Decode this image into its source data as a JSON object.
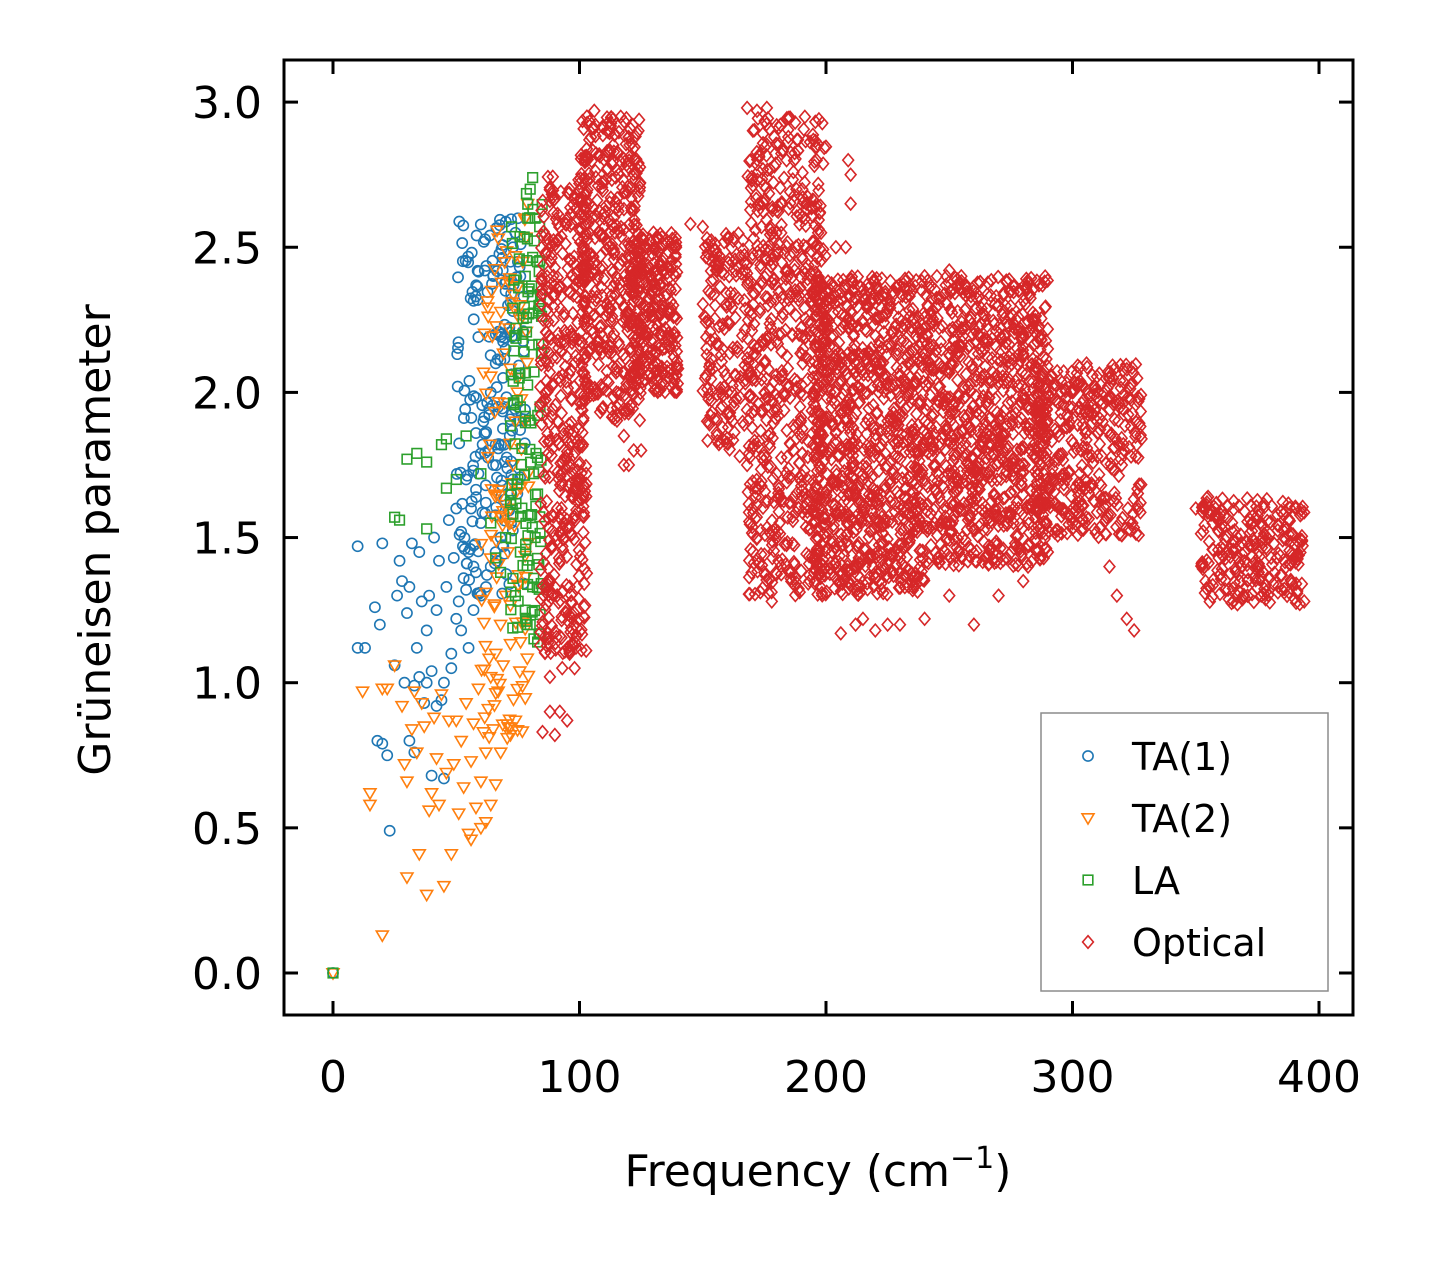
{
  "chart_data": {
    "type": "scatter",
    "xlabel": "Frequency (cm",
    "xlabel_sup": "−1",
    "xlabel_close": ")",
    "ylabel": "Grüneisen parameter",
    "xlim": [
      -20,
      413
    ],
    "ylim": [
      -0.15,
      3.15
    ],
    "xticks": [
      0,
      100,
      200,
      300,
      400
    ],
    "xtick_labels": [
      "0",
      "100",
      "200",
      "300",
      "400"
    ],
    "yticks": [
      0.0,
      0.5,
      1.0,
      1.5,
      2.0,
      2.5,
      3.0
    ],
    "ytick_labels": [
      "0.0",
      "0.5",
      "1.0",
      "1.5",
      "2.0",
      "2.5",
      "3.0"
    ],
    "grid": false,
    "legend_position": "lower-right",
    "series": [
      {
        "name": "TA(1)",
        "marker": "circle",
        "color": "#1f77b4",
        "points": [
          [
            0,
            0
          ],
          [
            10,
            1.47
          ],
          [
            10,
            1.12
          ],
          [
            13,
            1.12
          ],
          [
            17,
            1.26
          ],
          [
            19,
            1.2
          ],
          [
            20,
            1.48
          ],
          [
            23,
            0.49
          ],
          [
            25,
            1.06
          ],
          [
            18,
            0.8
          ],
          [
            20,
            0.79
          ],
          [
            22,
            0.75
          ],
          [
            26,
            1.3
          ],
          [
            27,
            1.42
          ],
          [
            28,
            1.35
          ],
          [
            29,
            1.0
          ],
          [
            30,
            1.24
          ],
          [
            31,
            0.8
          ],
          [
            31,
            1.33
          ],
          [
            32,
            1.48
          ],
          [
            33,
            0.76
          ],
          [
            34,
            1.12
          ],
          [
            35,
            1.45
          ],
          [
            36,
            1.28
          ],
          [
            37,
            0.93
          ],
          [
            38,
            1.18
          ],
          [
            39,
            1.3
          ],
          [
            40,
            1.04
          ],
          [
            40,
            0.68
          ],
          [
            41,
            1.5
          ],
          [
            42,
            1.25
          ],
          [
            43,
            1.42
          ],
          [
            44,
            0.94
          ],
          [
            45,
            0.67
          ],
          [
            46,
            1.33
          ],
          [
            47,
            1.56
          ],
          [
            48,
            1.1
          ],
          [
            49,
            1.43
          ],
          [
            50,
            1.6
          ],
          [
            51,
            1.28
          ],
          [
            52,
            1.52
          ],
          [
            53,
            1.36
          ],
          [
            54,
            1.7
          ],
          [
            55,
            1.45
          ],
          [
            56,
            1.6
          ],
          [
            57,
            1.4
          ],
          [
            58,
            1.86
          ],
          [
            59,
            1.72
          ],
          [
            60,
            1.55
          ],
          [
            61,
            1.9
          ],
          [
            62,
            1.68
          ],
          [
            63,
            1.8
          ],
          [
            64,
            2.0
          ],
          [
            65,
            1.75
          ],
          [
            66,
            2.1
          ],
          [
            67,
            1.95
          ],
          [
            68,
            2.2
          ],
          [
            69,
            2.05
          ],
          [
            70,
            2.35
          ],
          [
            71,
            2.3
          ],
          [
            72,
            2.45
          ],
          [
            73,
            2.5
          ],
          [
            74,
            2.55
          ],
          [
            75,
            2.6
          ],
          [
            76,
            2.4
          ],
          [
            68,
            1.5
          ],
          [
            64,
            1.4
          ],
          [
            60,
            1.3
          ],
          [
            57,
            1.25
          ],
          [
            55,
            1.12
          ],
          [
            52,
            1.18
          ],
          [
            48,
            1.05
          ],
          [
            45,
            1.0
          ],
          [
            42,
            0.92
          ],
          [
            38,
            1.0
          ],
          [
            35,
            1.02
          ],
          [
            33,
            0.99
          ],
          [
            62,
            1.62
          ],
          [
            66,
            1.82
          ],
          [
            70,
            2.15
          ],
          [
            73,
            2.28
          ],
          [
            75,
            2.45
          ],
          [
            58,
            1.38
          ],
          [
            54,
            1.32
          ],
          [
            50,
            1.22
          ]
        ],
        "clusters": [
          {
            "x0": 50,
            "x1": 78,
            "y0": 1.3,
            "y1": 2.6,
            "n": 180
          }
        ]
      },
      {
        "name": "TA(2)",
        "marker": "triangle-down",
        "color": "#ff7f0e",
        "points": [
          [
            0,
            0
          ],
          [
            12,
            0.97
          ],
          [
            15,
            0.62
          ],
          [
            15,
            0.58
          ],
          [
            20,
            0.13
          ],
          [
            20,
            0.98
          ],
          [
            22,
            0.98
          ],
          [
            25,
            1.06
          ],
          [
            28,
            0.92
          ],
          [
            29,
            0.72
          ],
          [
            30,
            0.66
          ],
          [
            30,
            0.33
          ],
          [
            32,
            0.84
          ],
          [
            33,
            0.97
          ],
          [
            34,
            0.76
          ],
          [
            35,
            0.41
          ],
          [
            36,
            0.93
          ],
          [
            37,
            0.85
          ],
          [
            38,
            0.27
          ],
          [
            39,
            0.56
          ],
          [
            40,
            0.62
          ],
          [
            41,
            0.88
          ],
          [
            42,
            0.74
          ],
          [
            43,
            0.58
          ],
          [
            44,
            0.96
          ],
          [
            45,
            0.3
          ],
          [
            46,
            0.69
          ],
          [
            47,
            0.87
          ],
          [
            48,
            0.41
          ],
          [
            49,
            0.72
          ],
          [
            50,
            0.87
          ],
          [
            51,
            0.55
          ],
          [
            52,
            0.8
          ],
          [
            53,
            0.64
          ],
          [
            54,
            0.93
          ],
          [
            55,
            0.48
          ],
          [
            56,
            0.73
          ],
          [
            57,
            0.86
          ],
          [
            58,
            0.57
          ],
          [
            59,
            0.98
          ],
          [
            60,
            0.66
          ],
          [
            61,
            0.83
          ],
          [
            62,
            0.76
          ],
          [
            63,
            0.91
          ],
          [
            64,
            1.02
          ],
          [
            65,
            0.84
          ],
          [
            66,
            1.1
          ],
          [
            67,
            0.97
          ],
          [
            68,
            1.2
          ],
          [
            69,
            1.06
          ],
          [
            70,
            1.3
          ],
          [
            71,
            1.45
          ],
          [
            72,
            1.6
          ],
          [
            73,
            1.75
          ],
          [
            74,
            1.9
          ],
          [
            75,
            2.05
          ],
          [
            76,
            2.25
          ],
          [
            77,
            2.45
          ],
          [
            78,
            2.6
          ],
          [
            79,
            2.65
          ],
          [
            72,
            0.82
          ],
          [
            74,
            0.87
          ],
          [
            68,
            0.76
          ],
          [
            66,
            0.65
          ],
          [
            64,
            0.58
          ],
          [
            62,
            0.52
          ],
          [
            60,
            0.5
          ],
          [
            56,
            0.46
          ]
        ],
        "clusters": [
          {
            "x0": 60,
            "x1": 80,
            "y0": 0.8,
            "y1": 2.6,
            "n": 110
          }
        ]
      },
      {
        "name": "LA",
        "marker": "square",
        "color": "#2ca02c",
        "points": [
          [
            0,
            0
          ],
          [
            25,
            1.57
          ],
          [
            27,
            1.56
          ],
          [
            30,
            1.77
          ],
          [
            34,
            1.79
          ],
          [
            38,
            1.76
          ],
          [
            38,
            1.53
          ],
          [
            44,
            1.82
          ],
          [
            46,
            1.84
          ],
          [
            46,
            1.67
          ],
          [
            50,
            1.7
          ],
          [
            54,
            1.85
          ],
          [
            60,
            1.72
          ],
          [
            64,
            1.55
          ],
          [
            66,
            1.43
          ],
          [
            68,
            1.38
          ],
          [
            70,
            1.5
          ],
          [
            72,
            1.62
          ],
          [
            74,
            1.3
          ],
          [
            75,
            1.7
          ],
          [
            76,
            1.95
          ],
          [
            77,
            2.2
          ],
          [
            78,
            2.4
          ],
          [
            79,
            2.6
          ],
          [
            80,
            2.7
          ],
          [
            81,
            2.74
          ],
          [
            82,
            2.6
          ],
          [
            83,
            2.45
          ],
          [
            84,
            2.3
          ],
          [
            84,
            1.95
          ],
          [
            83,
            1.65
          ],
          [
            82,
            1.5
          ],
          [
            83,
            1.14
          ],
          [
            81,
            1.33
          ],
          [
            80,
            1.2
          ],
          [
            78,
            1.25
          ],
          [
            76,
            1.45
          ]
        ],
        "clusters": [
          {
            "x0": 72,
            "x1": 85,
            "y0": 1.15,
            "y1": 2.7,
            "n": 120
          }
        ]
      },
      {
        "name": "Optical",
        "marker": "diamond",
        "color": "#d62728",
        "points": [
          [
            85,
            0.83
          ],
          [
            88,
            0.9
          ],
          [
            90,
            0.82
          ],
          [
            92,
            0.9
          ],
          [
            95,
            0.87
          ],
          [
            88,
            1.02
          ],
          [
            93,
            1.05
          ],
          [
            96,
            1.1
          ],
          [
            98,
            1.05
          ],
          [
            92,
            1.16
          ],
          [
            103,
            2.95
          ],
          [
            106,
            2.97
          ],
          [
            104,
            2.87
          ],
          [
            108,
            2.82
          ],
          [
            110,
            2.6
          ],
          [
            112,
            2.5
          ],
          [
            115,
            2.0
          ],
          [
            118,
            1.85
          ],
          [
            120,
            1.75
          ],
          [
            122,
            1.8
          ],
          [
            126,
            2.2
          ],
          [
            130,
            2.55
          ],
          [
            133,
            2.5
          ],
          [
            138,
            2.3
          ],
          [
            145,
            2.58
          ],
          [
            150,
            2.57
          ],
          [
            152,
            2.48
          ],
          [
            155,
            2.3
          ],
          [
            158,
            2.15
          ],
          [
            160,
            2.0
          ],
          [
            162,
            1.9
          ],
          [
            165,
            1.78
          ],
          [
            168,
            1.75
          ],
          [
            170,
            1.6
          ],
          [
            172,
            1.5
          ],
          [
            175,
            1.38
          ],
          [
            178,
            1.28
          ],
          [
            168,
            2.98
          ],
          [
            172,
            2.97
          ],
          [
            176,
            2.98
          ],
          [
            180,
            2.92
          ],
          [
            184,
            2.8
          ],
          [
            188,
            2.7
          ],
          [
            192,
            2.65
          ],
          [
            198,
            2.55
          ],
          [
            204,
            2.5
          ],
          [
            208,
            2.5
          ],
          [
            209,
            2.8
          ],
          [
            210,
            2.65
          ],
          [
            210,
            2.75
          ],
          [
            212,
            1.2
          ],
          [
            206,
            1.17
          ],
          [
            215,
            1.22
          ],
          [
            220,
            1.18
          ],
          [
            225,
            1.2
          ],
          [
            230,
            1.2
          ],
          [
            240,
            1.22
          ],
          [
            250,
            1.3
          ],
          [
            260,
            1.2
          ],
          [
            270,
            1.3
          ],
          [
            280,
            1.35
          ],
          [
            290,
            1.45
          ],
          [
            300,
            1.55
          ],
          [
            305,
            1.7
          ],
          [
            310,
            1.78
          ],
          [
            315,
            1.4
          ],
          [
            318,
            1.3
          ],
          [
            322,
            1.22
          ],
          [
            325,
            1.18
          ],
          [
            320,
            1.75
          ],
          [
            326,
            1.82
          ],
          [
            328,
            1.84
          ],
          [
            250,
            2.42
          ],
          [
            245,
            2.4
          ],
          [
            240,
            2.4
          ],
          [
            235,
            2.35
          ],
          [
            260,
            2.35
          ],
          [
            270,
            2.3
          ],
          [
            280,
            2.2
          ],
          [
            290,
            2.15
          ],
          [
            300,
            2.0
          ],
          [
            310,
            1.9
          ],
          [
            355,
            1.64
          ],
          [
            360,
            1.58
          ],
          [
            365,
            1.52
          ],
          [
            370,
            1.45
          ],
          [
            375,
            1.4
          ],
          [
            380,
            1.36
          ],
          [
            385,
            1.32
          ],
          [
            390,
            1.29
          ],
          [
            394,
            1.28
          ],
          [
            350,
            1.6
          ],
          [
            118,
            1.75
          ],
          [
            125,
            1.8
          ]
        ],
        "clusters": [
          {
            "x0": 84,
            "x1": 103,
            "y0": 1.1,
            "y1": 2.75,
            "n": 450
          },
          {
            "x0": 100,
            "x1": 125,
            "y0": 1.9,
            "y1": 2.95,
            "n": 420
          },
          {
            "x0": 120,
            "x1": 140,
            "y0": 2.0,
            "y1": 2.55,
            "n": 280
          },
          {
            "x0": 150,
            "x1": 168,
            "y0": 1.8,
            "y1": 2.55,
            "n": 160
          },
          {
            "x0": 168,
            "x1": 200,
            "y0": 1.3,
            "y1": 2.95,
            "n": 650
          },
          {
            "x0": 195,
            "x1": 240,
            "y0": 1.3,
            "y1": 2.4,
            "n": 950
          },
          {
            "x0": 240,
            "x1": 290,
            "y0": 1.4,
            "y1": 2.4,
            "n": 900
          },
          {
            "x0": 285,
            "x1": 328,
            "y0": 1.5,
            "y1": 2.1,
            "n": 380
          },
          {
            "x0": 352,
            "x1": 394,
            "y0": 1.27,
            "y1": 1.64,
            "n": 260
          }
        ]
      }
    ]
  }
}
